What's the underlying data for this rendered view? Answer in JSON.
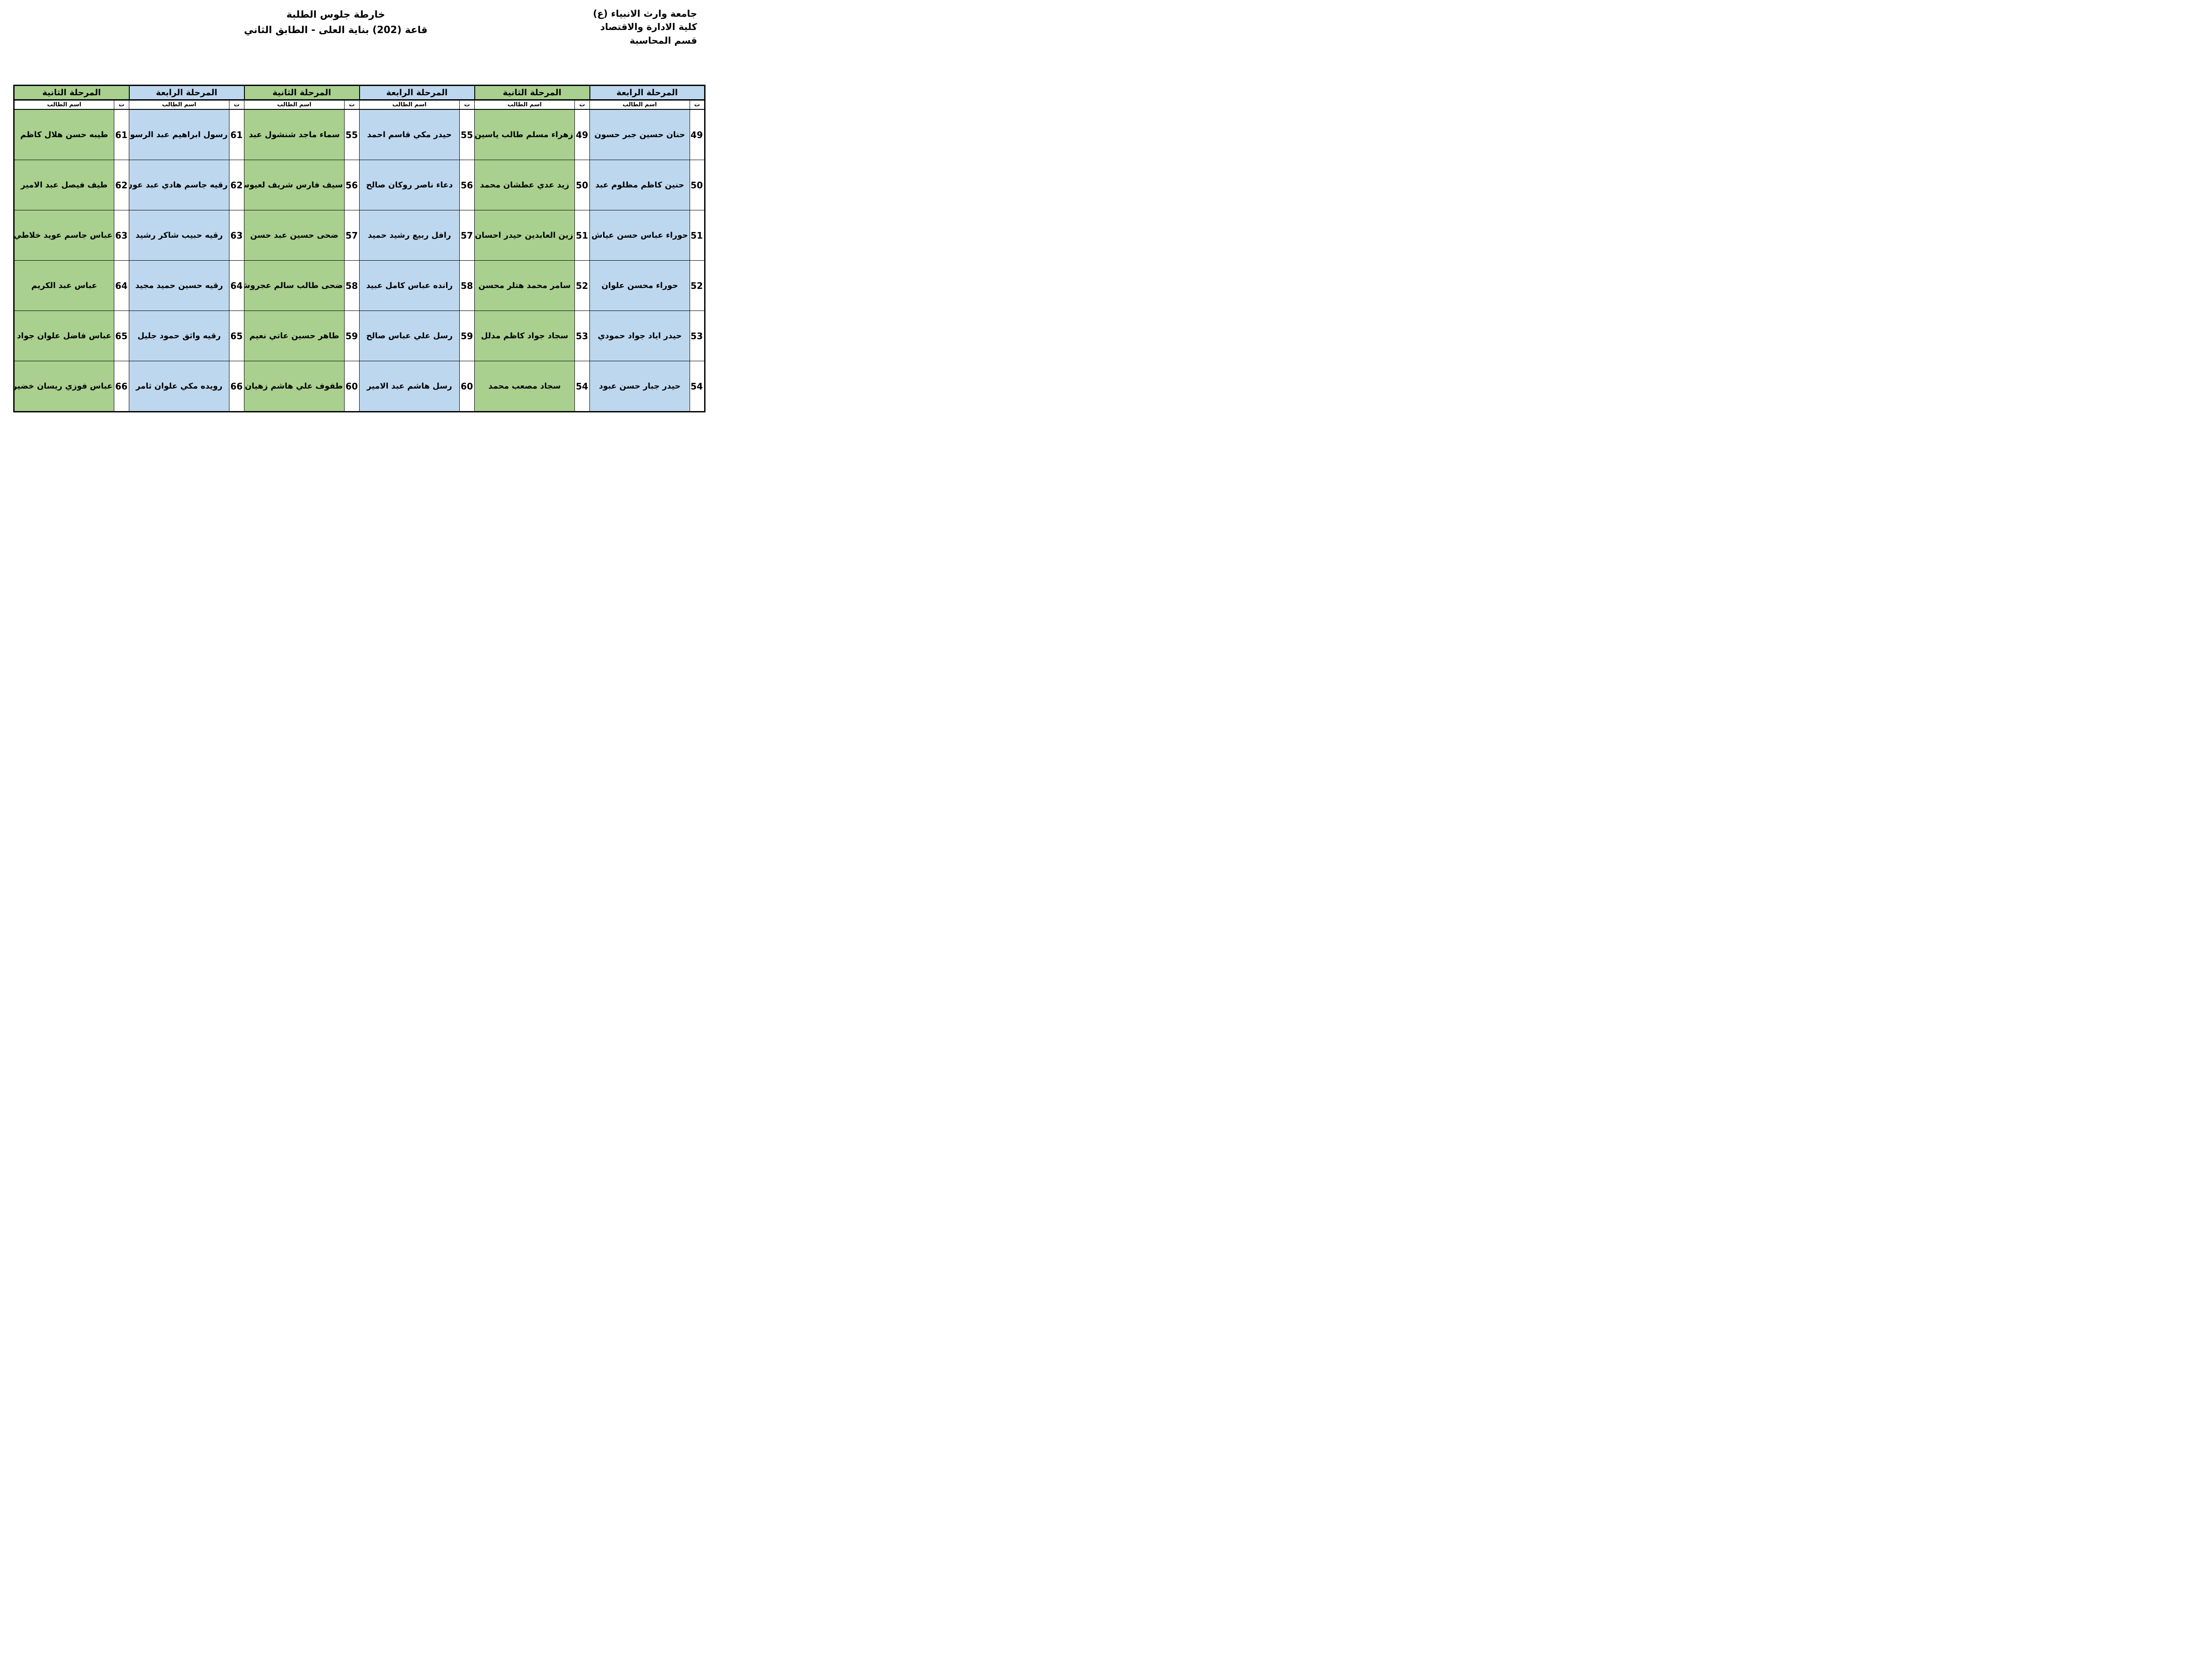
{
  "header": {
    "line1": "جامعة وارث الانبياء (ع)",
    "line2": "كلية الادارة والاقتصاد",
    "line3": "قسم المحاسبة"
  },
  "title": {
    "line1": "خارطة جلوس الطلبة",
    "line2": "قاعة (202) بناية العلى - الطابق الثاني"
  },
  "table": {
    "sub_headers": {
      "serial": "ت",
      "name": "اسم الطالب"
    },
    "stage_colors": {
      "green": "#A9D08E",
      "blue": "#BDD7EE"
    },
    "groups": [
      {
        "stage": "المرحلة الرابعة",
        "color": "blue",
        "students": [
          {
            "no": "49",
            "name": "حنان حسين جبر حسون"
          },
          {
            "no": "50",
            "name": "حنين كاظم مظلوم عبد"
          },
          {
            "no": "51",
            "name": "حوراء عباس حسن عياش"
          },
          {
            "no": "52",
            "name": "حوراء محسن علوان"
          },
          {
            "no": "53",
            "name": "حيدر اياد جواد حمودي"
          },
          {
            "no": "54",
            "name": "حيدر جبار حسن عبود"
          }
        ]
      },
      {
        "stage": "المرحلة الثانية",
        "color": "green",
        "students": [
          {
            "no": "49",
            "name": "زهراء مسلم طالب ياسين"
          },
          {
            "no": "50",
            "name": "زيد عدي عطشان محمد"
          },
          {
            "no": "51",
            "name": "زين العابدين حيدر احسان"
          },
          {
            "no": "52",
            "name": "سامر محمد هتلر محسن"
          },
          {
            "no": "53",
            "name": "سجاد جواد كاظم مدلل"
          },
          {
            "no": "54",
            "name": "سجاد مصعب محمد"
          }
        ]
      },
      {
        "stage": "المرحلة الرابعة",
        "color": "blue",
        "students": [
          {
            "no": "55",
            "name": "حيدر مكي قاسم احمد"
          },
          {
            "no": "56",
            "name": "دعاء ناصر روكان صالح"
          },
          {
            "no": "57",
            "name": "رافل ربيع رشيد حميد"
          },
          {
            "no": "58",
            "name": "رانده عباس كامل عبيد"
          },
          {
            "no": "59",
            "name": "رسل علي عباس صالح"
          },
          {
            "no": "60",
            "name": "رسل هاشم عبد الامير"
          }
        ]
      },
      {
        "stage": "المرحلة الثانية",
        "color": "green",
        "students": [
          {
            "no": "55",
            "name": "سماء ماجد شنشول عبد"
          },
          {
            "no": "56",
            "name": "سيف فارس شريف لعيوس"
          },
          {
            "no": "57",
            "name": "ضحى حسين عبد حسن"
          },
          {
            "no": "58",
            "name": "ضحى طالب سالم عجروش"
          },
          {
            "no": "59",
            "name": "طاهر حسين عاتي نعيم"
          },
          {
            "no": "60",
            "name": "طفوف علي هاشم زهيان"
          }
        ]
      },
      {
        "stage": "المرحلة الرابعة",
        "color": "blue",
        "students": [
          {
            "no": "61",
            "name": "رسول ابراهيم عبد الرسول"
          },
          {
            "no": "62",
            "name": "رقيه جاسم هادي عبد عون"
          },
          {
            "no": "63",
            "name": "رقيه حبيب شاكر رشيد"
          },
          {
            "no": "64",
            "name": "رقيه حسين حميد مجيد"
          },
          {
            "no": "65",
            "name": "رقيه واثق حمود جليل"
          },
          {
            "no": "66",
            "name": "رويده مكي علوان ثامر"
          }
        ]
      },
      {
        "stage": "المرحلة الثانية",
        "color": "green",
        "students": [
          {
            "no": "61",
            "name": "طيبه حسن هلال كاظم"
          },
          {
            "no": "62",
            "name": "طيف فيصل عبد الامير"
          },
          {
            "no": "63",
            "name": "عباس جاسم عويد خلاطي"
          },
          {
            "no": "64",
            "name": "عباس عبد الكريم"
          },
          {
            "no": "65",
            "name": "عباس فاضل علوان جواد"
          },
          {
            "no": "66",
            "name": "عباس فوزي ريسان خضير"
          }
        ]
      }
    ]
  }
}
